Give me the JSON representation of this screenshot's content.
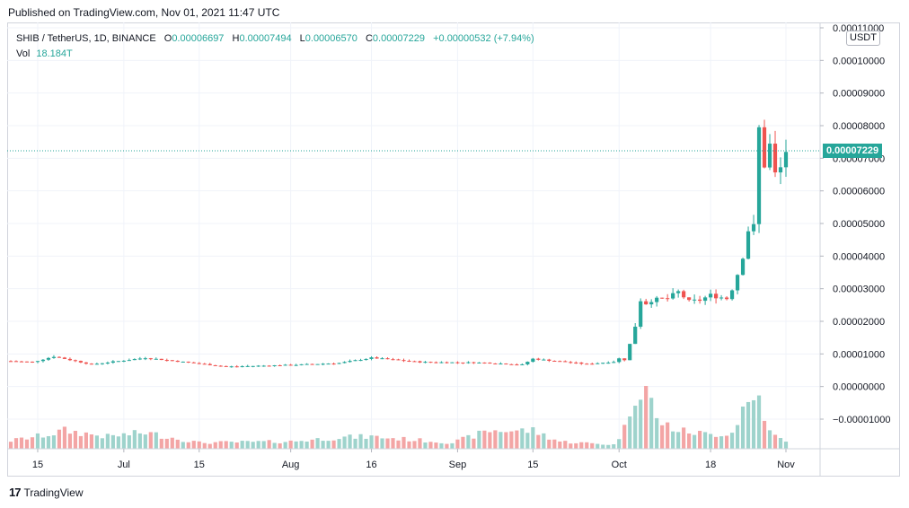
{
  "published": "Published on TradingView.com, Nov 01, 2021 11:47 UTC",
  "legend": {
    "symbol": "SHIB / TetherUS, 1D, BINANCE",
    "o_label": "O",
    "o": "0.00006697",
    "h_label": "H",
    "h": "0.00007494",
    "l_label": "L",
    "l": "0.00006570",
    "c_label": "C",
    "c": "0.00007229",
    "change": "+0.00000532 (+7.94%)",
    "vol_label": "Vol",
    "vol": "18.184T"
  },
  "currency": "USDT",
  "last_price_label": "0.00007229",
  "footer": {
    "brand": "TradingView",
    "logo": "tradingview-logo-icon"
  },
  "colors": {
    "up": "#26a69a",
    "down": "#ef5350",
    "vol_up": "#9ed3cc",
    "vol_down": "#f3a5a5",
    "grid": "#f0f3fa"
  },
  "chart_data": {
    "type": "candlestick",
    "symbol": "SHIB / TetherUS",
    "interval": "1D",
    "exchange": "BINANCE",
    "y_ticks": [
      "0.00011000",
      "0.00010000",
      "0.00009000",
      "0.00008000",
      "0.00007000",
      "0.00006000",
      "0.00005000",
      "0.00004000",
      "0.00003000",
      "0.00002000",
      "0.00001000",
      "0.00000000",
      "−0.00001000"
    ],
    "ylim": [
      -1e-05,
      0.00011
    ],
    "last_price": 7.229e-05,
    "x_ticks": [
      {
        "label": "15",
        "date": "2021-06-15"
      },
      {
        "label": "Jul",
        "date": "2021-07-01"
      },
      {
        "label": "15",
        "date": "2021-07-15"
      },
      {
        "label": "Aug",
        "date": "2021-08-01"
      },
      {
        "label": "16",
        "date": "2021-08-16"
      },
      {
        "label": "Sep",
        "date": "2021-09-01"
      },
      {
        "label": "15",
        "date": "2021-09-15"
      },
      {
        "label": "Oct",
        "date": "2021-10-01"
      },
      {
        "label": "18",
        "date": "2021-10-18"
      },
      {
        "label": "Nov",
        "date": "2021-11-01"
      }
    ],
    "x_range": [
      "2021-06-10",
      "2021-11-01"
    ],
    "anchors": {
      "close": [
        [
          "2021-06-10",
          7.8e-06
        ],
        [
          "2021-06-14",
          7.5e-06
        ],
        [
          "2021-06-18",
          9.2e-06
        ],
        [
          "2021-06-25",
          6.8e-06
        ],
        [
          "2021-07-05",
          8.8e-06
        ],
        [
          "2021-07-20",
          6.1e-06
        ],
        [
          "2021-08-01",
          6.6e-06
        ],
        [
          "2021-08-10",
          7.2e-06
        ],
        [
          "2021-08-16",
          8.8e-06
        ],
        [
          "2021-08-25",
          7.5e-06
        ],
        [
          "2021-09-06",
          7.3e-06
        ],
        [
          "2021-09-13",
          6.7e-06
        ],
        [
          "2021-09-15",
          8.5e-06
        ],
        [
          "2021-09-25",
          6.9e-06
        ],
        [
          "2021-09-30",
          7.6e-06
        ],
        [
          "2021-10-01",
          8.6e-06
        ],
        [
          "2021-10-02",
          8.2e-06
        ],
        [
          "2021-10-03",
          1.3e-05
        ],
        [
          "2021-10-04",
          1.85e-05
        ],
        [
          "2021-10-05",
          2.65e-05
        ],
        [
          "2021-10-06",
          2.55e-05
        ],
        [
          "2021-10-07",
          2.65e-05
        ],
        [
          "2021-10-10",
          2.7e-05
        ],
        [
          "2021-10-12",
          2.9e-05
        ],
        [
          "2021-10-14",
          2.6e-05
        ],
        [
          "2021-10-16",
          2.65e-05
        ],
        [
          "2021-10-18",
          2.8e-05
        ],
        [
          "2021-10-21",
          2.7e-05
        ],
        [
          "2021-10-22",
          3e-05
        ],
        [
          "2021-10-23",
          3.45e-05
        ],
        [
          "2021-10-24",
          4e-05
        ],
        [
          "2021-10-25",
          4.8e-05
        ],
        [
          "2021-10-26",
          4.9e-05
        ],
        [
          "2021-10-27",
          7.9e-05
        ],
        [
          "2021-10-28",
          6.8e-05
        ],
        [
          "2021-10-29",
          7.4e-05
        ],
        [
          "2021-10-30",
          6.5e-05
        ],
        [
          "2021-10-31",
          6.7e-05
        ],
        [
          "2021-11-01",
          7.23e-05
        ]
      ],
      "volume_rel": [
        [
          "2021-06-10",
          0.2
        ],
        [
          "2021-06-17",
          0.35
        ],
        [
          "2021-06-20",
          0.45
        ],
        [
          "2021-06-28",
          0.3
        ],
        [
          "2021-07-05",
          0.4
        ],
        [
          "2021-07-15",
          0.15
        ],
        [
          "2021-08-01",
          0.18
        ],
        [
          "2021-08-10",
          0.28
        ],
        [
          "2021-08-16",
          0.3
        ],
        [
          "2021-08-31",
          0.15
        ],
        [
          "2021-09-07",
          0.45
        ],
        [
          "2021-09-15",
          0.45
        ],
        [
          "2021-09-20",
          0.18
        ],
        [
          "2021-09-30",
          0.1
        ],
        [
          "2021-10-02",
          0.5
        ],
        [
          "2021-10-04",
          1.4
        ],
        [
          "2021-10-06",
          1.6
        ],
        [
          "2021-10-08",
          0.7
        ],
        [
          "2021-10-12",
          0.45
        ],
        [
          "2021-10-18",
          0.35
        ],
        [
          "2021-10-22",
          0.4
        ],
        [
          "2021-10-24",
          1.0
        ],
        [
          "2021-10-27",
          1.3
        ],
        [
          "2021-10-29",
          0.4
        ],
        [
          "2021-11-01",
          0.16
        ]
      ]
    }
  }
}
